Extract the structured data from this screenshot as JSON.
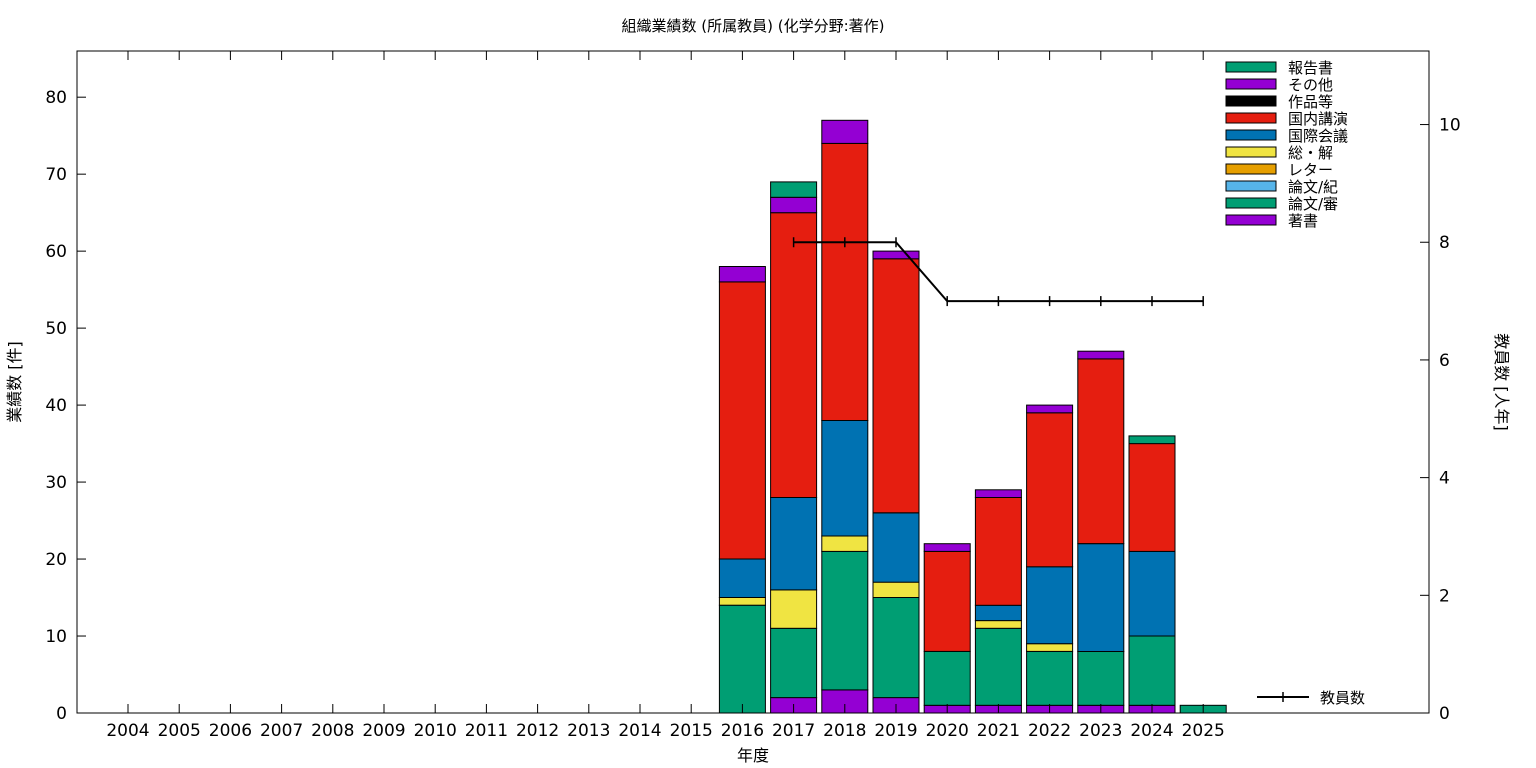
{
  "chart_data": {
    "type": "bar",
    "stacked": true,
    "title": "組織業績数 (所属教員) (化学分野:著作)",
    "xlabel": "年度",
    "ylabel": "業績数 [件]",
    "y2label": "教員数 [人年]",
    "ylim": [
      0,
      86
    ],
    "y2lim": [
      0,
      11.25
    ],
    "yticks": [
      0,
      10,
      20,
      30,
      40,
      50,
      60,
      70,
      80
    ],
    "y2ticks": [
      0,
      2,
      4,
      6,
      8,
      10
    ],
    "grid": false,
    "legend_position": "top-right",
    "categories": [
      "2004",
      "2005",
      "2006",
      "2007",
      "2008",
      "2009",
      "2010",
      "2011",
      "2012",
      "2013",
      "2014",
      "2015",
      "2016",
      "2017",
      "2018",
      "2019",
      "2020",
      "2021",
      "2022",
      "2023",
      "2024",
      "2025"
    ],
    "series": [
      {
        "name": "著書",
        "color": "#9400d3",
        "values": [
          0,
          0,
          0,
          0,
          0,
          0,
          0,
          0,
          0,
          0,
          0,
          0,
          0,
          2,
          3,
          2,
          1,
          1,
          1,
          1,
          1,
          0
        ]
      },
      {
        "name": "論文/審",
        "color": "#009e73",
        "values": [
          0,
          0,
          0,
          0,
          0,
          0,
          0,
          0,
          0,
          0,
          0,
          0,
          14,
          9,
          18,
          13,
          7,
          10,
          7,
          7,
          9,
          1
        ]
      },
      {
        "name": "論文/紀",
        "color": "#56b4e9",
        "values": [
          0,
          0,
          0,
          0,
          0,
          0,
          0,
          0,
          0,
          0,
          0,
          0,
          0,
          0,
          0,
          0,
          0,
          0,
          0,
          0,
          0,
          0
        ]
      },
      {
        "name": "レター",
        "color": "#e69f00",
        "values": [
          0,
          0,
          0,
          0,
          0,
          0,
          0,
          0,
          0,
          0,
          0,
          0,
          0,
          0,
          0,
          0,
          0,
          0,
          0,
          0,
          0,
          0
        ]
      },
      {
        "name": "総・解",
        "color": "#f0e442",
        "values": [
          0,
          0,
          0,
          0,
          0,
          0,
          0,
          0,
          0,
          0,
          0,
          0,
          1,
          5,
          2,
          2,
          0,
          1,
          1,
          0,
          0,
          0
        ]
      },
      {
        "name": "国際会議",
        "color": "#0072b2",
        "values": [
          0,
          0,
          0,
          0,
          0,
          0,
          0,
          0,
          0,
          0,
          0,
          0,
          5,
          12,
          15,
          9,
          0,
          2,
          10,
          14,
          11,
          0
        ]
      },
      {
        "name": "国内講演",
        "color": "#e51e10",
        "values": [
          0,
          0,
          0,
          0,
          0,
          0,
          0,
          0,
          0,
          0,
          0,
          0,
          36,
          37,
          36,
          33,
          13,
          14,
          20,
          24,
          14,
          0
        ]
      },
      {
        "name": "作品等",
        "color": "#000000",
        "values": [
          0,
          0,
          0,
          0,
          0,
          0,
          0,
          0,
          0,
          0,
          0,
          0,
          0,
          0,
          0,
          0,
          0,
          0,
          0,
          0,
          0,
          0
        ]
      },
      {
        "name": "その他",
        "color": "#9400d3",
        "values": [
          0,
          0,
          0,
          0,
          0,
          0,
          0,
          0,
          0,
          0,
          0,
          0,
          2,
          2,
          3,
          1,
          1,
          1,
          1,
          1,
          0,
          0
        ]
      },
      {
        "name": "報告書",
        "color": "#009e73",
        "values": [
          0,
          0,
          0,
          0,
          0,
          0,
          0,
          0,
          0,
          0,
          0,
          0,
          0,
          2,
          0,
          0,
          0,
          0,
          0,
          0,
          1,
          0
        ]
      }
    ],
    "legend_order": [
      "報告書",
      "その他",
      "作品等",
      "国内講演",
      "国際会議",
      "総・解",
      "レター",
      "論文/紀",
      "論文/審",
      "著書"
    ],
    "line_series": {
      "name": "教員数",
      "axis": "y2",
      "color": "#000000",
      "x": [
        "2017",
        "2018",
        "2019",
        "2020",
        "2021",
        "2022",
        "2023",
        "2024",
        "2025"
      ],
      "values": [
        8,
        8,
        8,
        7,
        7,
        7,
        7,
        7,
        7
      ]
    }
  }
}
